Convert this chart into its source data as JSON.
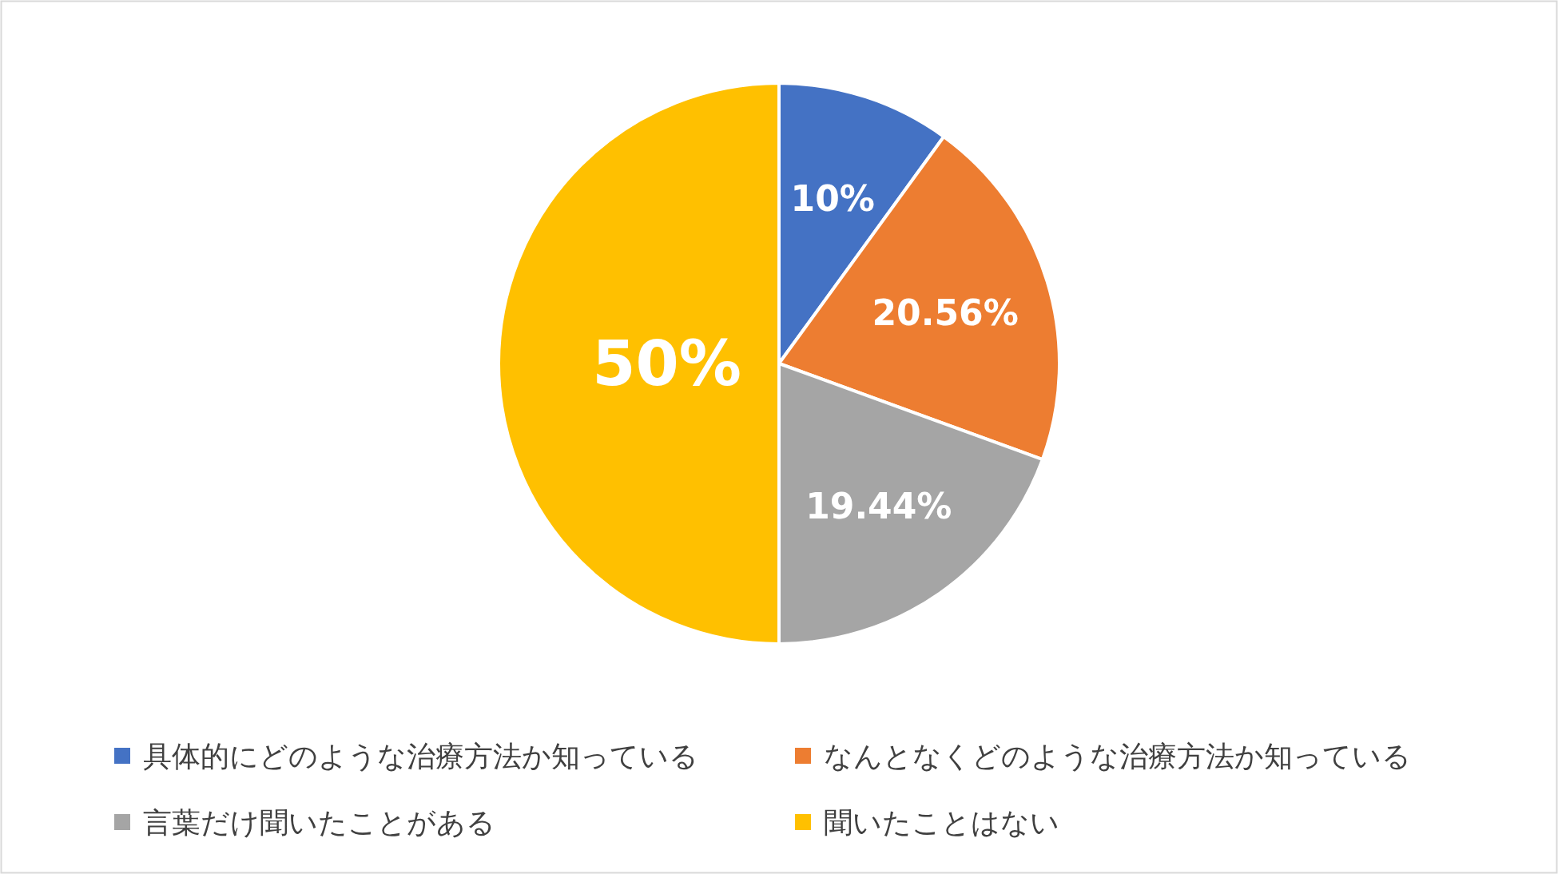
{
  "chart_data": {
    "type": "pie",
    "categories": [
      "具体的にどのような治療方法か知っている",
      "なんとなくどのような治療方法か知っている",
      "言葉だけ聞いたことがある",
      "聞いたことはない"
    ],
    "values": [
      10,
      20.56,
      19.44,
      50
    ],
    "colors": [
      "#4472c4",
      "#ed7d31",
      "#a5a5a5",
      "#ffc000"
    ],
    "value_labels": [
      "10%",
      "20.56%",
      "19.44%",
      "50%"
    ],
    "legend": "bottom"
  }
}
